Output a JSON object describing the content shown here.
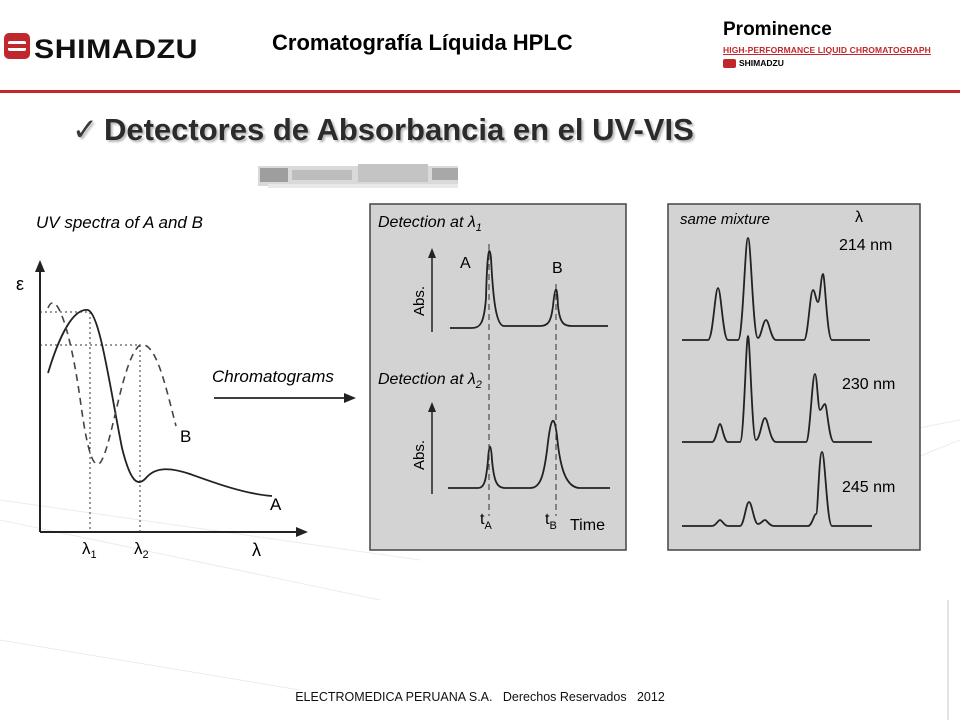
{
  "header": {
    "brand": "SHIMADZU",
    "title": "Cromatografía Líquida HPLC",
    "product": {
      "name": "Prominence",
      "subtitle": "HIGH-PERFORMANCE LIQUID CHROMATOGRAPH",
      "brand": "SHIMADZU"
    }
  },
  "heading": {
    "check": "✓",
    "text": "Detectores de Absorbancia en el UV-VIS"
  },
  "figure": {
    "uv_panel": {
      "title": "UV spectra of A and B",
      "y_symbol": "ε",
      "x_symbol": "λ",
      "lambda1": "λ",
      "lambda1_sub": "1",
      "lambda2": "λ",
      "lambda2_sub": "2",
      "curve_a_label": "A",
      "curve_b_label": "B"
    },
    "arrow_label": "Chromatograms",
    "detection_panel": {
      "title1": "Detection at λ",
      "title1_sub": "1",
      "title2": "Detection at λ",
      "title2_sub": "2",
      "ylabel": "Abs.",
      "peak_a_label": "A",
      "peak_b_label": "B",
      "ta": "t",
      "ta_sub": "A",
      "tb": "t",
      "tb_sub": "B",
      "time_label": "Time"
    },
    "mixture_panel": {
      "title": "same mixture",
      "lambda_header": "λ",
      "wavelengths": [
        "214 nm",
        "230 nm",
        "245 nm"
      ]
    }
  },
  "footer": {
    "text": "ELECTROMEDICA PERUANA S.A.   Derechos Reservados   2012"
  }
}
